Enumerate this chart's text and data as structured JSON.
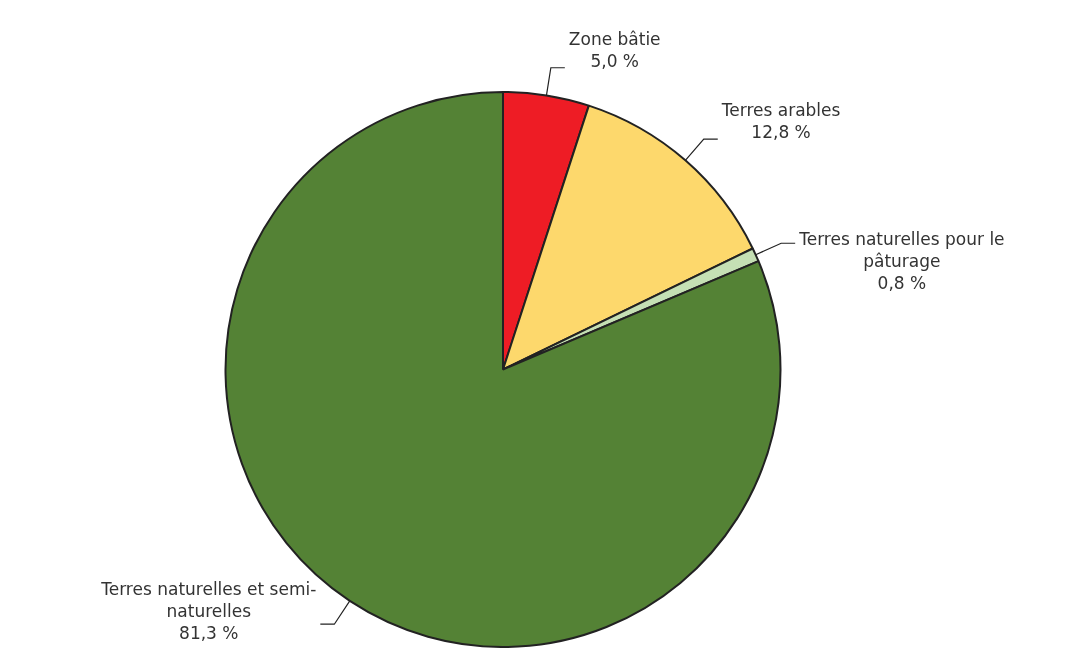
{
  "chart_data": {
    "type": "pie",
    "categories": [
      "Zone bâtie",
      "Terres arables",
      "Terres naturelles pour le pâturage",
      "Terres naturelles et semi-naturelles"
    ],
    "values": [
      5.0,
      12.8,
      0.8,
      81.3
    ],
    "colors": [
      "#ee1c25",
      "#fdd86c",
      "#c5e0b4",
      "#548235"
    ],
    "value_labels": [
      "5,0 %",
      "12,8 %",
      "0,8 %",
      "81,3 %"
    ]
  }
}
